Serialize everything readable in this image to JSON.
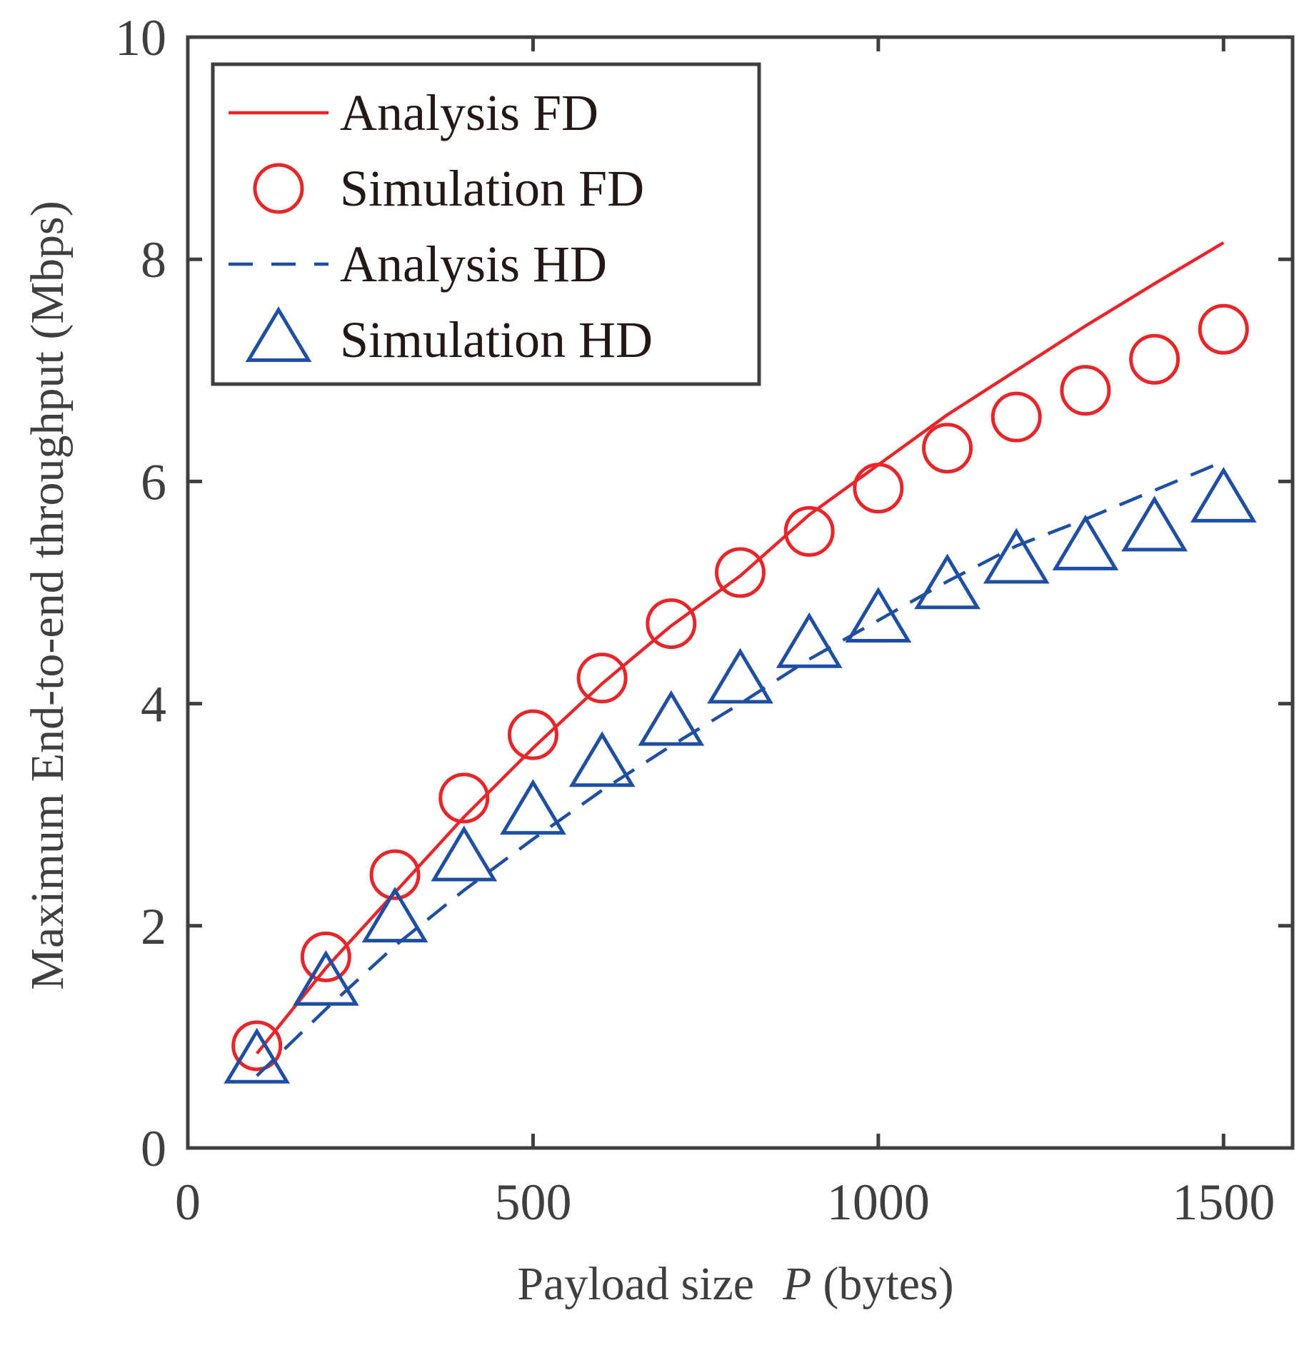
{
  "chart_data": {
    "type": "line",
    "title": "",
    "xlabel": "Payload size",
    "xlabel_variable": "P",
    "xlabel_unit": "(bytes)",
    "ylabel": "Maximum End-to-end throughput (Mbps)",
    "xlim": [
      0,
      1600
    ],
    "ylim": [
      0,
      10
    ],
    "xticks": [
      0,
      500,
      1000,
      1500
    ],
    "yticks": [
      0,
      2,
      4,
      6,
      8,
      10
    ],
    "grid": false,
    "legend_location": "top-left",
    "series": [
      {
        "name": "Analysis FD",
        "kind": "line",
        "style": "solid",
        "color": "#e8262a",
        "x": [
          100,
          200,
          300,
          400,
          500,
          600,
          700,
          800,
          900,
          1000,
          1100,
          1200,
          1300,
          1400,
          1500
        ],
        "values": [
          0.85,
          1.62,
          2.3,
          2.98,
          3.6,
          4.18,
          4.7,
          5.15,
          5.7,
          6.15,
          6.6,
          7.0,
          7.4,
          7.78,
          8.15
        ]
      },
      {
        "name": "Simulation FD",
        "kind": "markers",
        "marker": "circle",
        "color": "#e8262a",
        "x": [
          100,
          200,
          300,
          400,
          500,
          600,
          700,
          800,
          900,
          1000,
          1100,
          1200,
          1300,
          1400,
          1500
        ],
        "values": [
          0.92,
          1.72,
          2.46,
          3.15,
          3.72,
          4.23,
          4.72,
          5.18,
          5.55,
          5.94,
          6.3,
          6.58,
          6.82,
          7.1,
          7.37
        ]
      },
      {
        "name": "Analysis HD",
        "kind": "line",
        "style": "dashed",
        "color": "#1f4fa3",
        "x": [
          100,
          200,
          300,
          400,
          500,
          600,
          700,
          800,
          900,
          1000,
          1100,
          1200,
          1300,
          1400,
          1500
        ],
        "values": [
          0.65,
          1.25,
          1.82,
          2.32,
          2.78,
          3.22,
          3.62,
          4.0,
          4.4,
          4.75,
          5.1,
          5.42,
          5.66,
          5.92,
          6.18
        ]
      },
      {
        "name": "Simulation HD",
        "kind": "markers",
        "marker": "triangle",
        "color": "#1f4fa3",
        "x": [
          100,
          200,
          300,
          400,
          500,
          600,
          700,
          800,
          900,
          1000,
          1100,
          1200,
          1300,
          1400,
          1500
        ],
        "values": [
          0.78,
          1.48,
          2.05,
          2.6,
          3.02,
          3.45,
          3.82,
          4.2,
          4.52,
          4.75,
          5.05,
          5.28,
          5.4,
          5.57,
          5.83
        ]
      }
    ]
  }
}
